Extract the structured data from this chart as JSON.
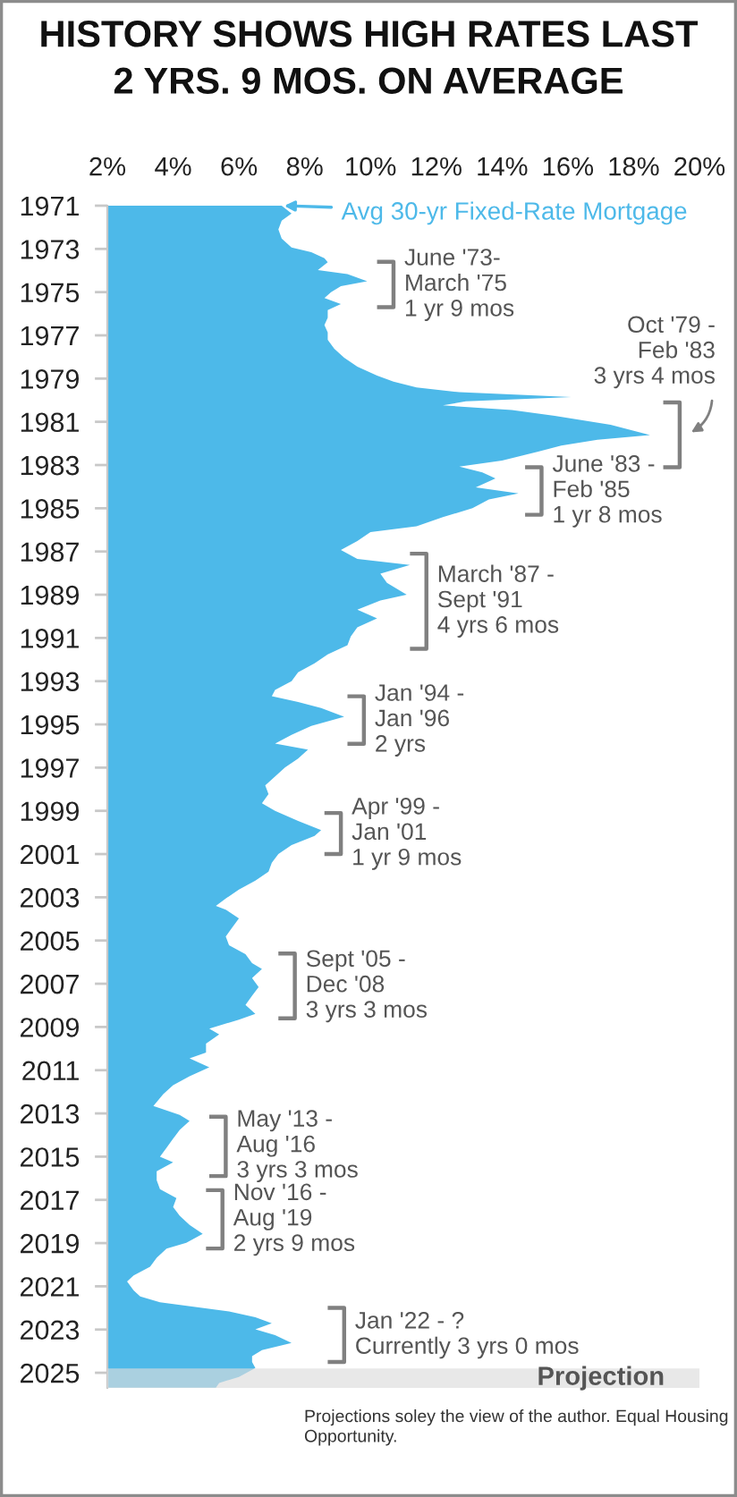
{
  "chart_data": {
    "type": "area",
    "orientation": "horizontal",
    "title": "HISTORY SHOWS HIGH RATES LAST\n2 YRS. 9 MOS. ON AVERAGE",
    "x": [
      1971.0,
      1971.36,
      1971.69,
      1972.1,
      1972.52,
      1972.93,
      1973.15,
      1973.43,
      1973.62,
      1973.98,
      1974.17,
      1974.5,
      1974.72,
      1975.0,
      1975.27,
      1975.55,
      1975.83,
      1976.18,
      1976.52,
      1976.87,
      1977.21,
      1977.62,
      1978.03,
      1978.45,
      1978.86,
      1979.14,
      1979.41,
      1979.63,
      1979.85,
      1980.05,
      1980.24,
      1980.45,
      1980.72,
      1981.14,
      1981.61,
      1981.83,
      1982.1,
      1982.38,
      1982.79,
      1983.07,
      1983.34,
      1983.62,
      1984.03,
      1984.31,
      1984.59,
      1985.0,
      1985.41,
      1985.83,
      1986.1,
      1986.52,
      1986.93,
      1987.34,
      1987.62,
      1988.03,
      1988.45,
      1989.0,
      1989.27,
      1989.69,
      1990.1,
      1990.51,
      1990.93,
      1991.34,
      1991.76,
      1992.17,
      1992.59,
      1993.0,
      1993.41,
      1993.69,
      1993.96,
      1994.24,
      1994.65,
      1995.07,
      1995.48,
      1995.89,
      1996.17,
      1996.58,
      1997.0,
      1997.41,
      1997.82,
      1998.23,
      1998.65,
      1999.0,
      1999.47,
      1999.89,
      2000.16,
      2000.58,
      2001.0,
      2001.4,
      2001.82,
      2002.23,
      2002.64,
      2003.06,
      2003.4,
      2003.57,
      2003.98,
      2004.39,
      2004.81,
      2005.22,
      2005.63,
      2006.05,
      2006.32,
      2006.74,
      2007.15,
      2007.56,
      2007.98,
      2008.39,
      2008.66,
      2009.08,
      2009.35,
      2009.77,
      2010.18,
      2010.45,
      2010.87,
      2011.28,
      2011.69,
      2012.11,
      2012.66,
      2013.07,
      2013.35,
      2013.76,
      2014.17,
      2014.59,
      2015.0,
      2015.26,
      2015.68,
      2016.09,
      2016.5,
      2016.92,
      2017.33,
      2017.74,
      2018.16,
      2018.57,
      2018.99,
      2019.26,
      2019.68,
      2020.09,
      2020.5,
      2020.78,
      2021.19,
      2021.47,
      2021.74,
      2022.16,
      2022.43,
      2022.71,
      2022.99,
      2023.26,
      2023.62,
      2023.95,
      2024.23,
      2024.5,
      2024.78,
      2025.19,
      2025.47,
      2025.69
    ],
    "series": [
      {
        "name": "Avg 30-yr Fixed-Rate Mortgage",
        "color": "#4db9e9",
        "values": [
          7.3,
          7.6,
          7.3,
          7.2,
          7.3,
          7.6,
          8.2,
          8.6,
          8.7,
          8.4,
          9.3,
          9.9,
          9.1,
          8.8,
          8.6,
          9.1,
          8.7,
          8.7,
          8.6,
          8.7,
          8.7,
          8.9,
          9.2,
          9.6,
          10.2,
          10.7,
          11.4,
          12.7,
          16.1,
          12.9,
          12.2,
          14.3,
          15.6,
          17.3,
          18.5,
          16.9,
          15.8,
          15.1,
          14.0,
          12.7,
          13.4,
          13.8,
          13.2,
          14.5,
          13.6,
          13.1,
          12.2,
          11.4,
          10.0,
          9.6,
          9.1,
          9.6,
          11.2,
          10.3,
          10.5,
          11.1,
          10.3,
          9.6,
          10.2,
          9.6,
          9.4,
          9.3,
          8.7,
          8.3,
          7.8,
          7.6,
          7.1,
          7.0,
          7.8,
          8.5,
          9.2,
          8.2,
          7.6,
          7.1,
          8.1,
          7.8,
          7.4,
          7.1,
          6.8,
          6.9,
          6.7,
          7.1,
          7.8,
          8.5,
          8.3,
          7.6,
          7.2,
          7.0,
          6.9,
          6.5,
          6.0,
          5.6,
          5.3,
          5.6,
          6.0,
          5.8,
          5.6,
          5.7,
          6.2,
          6.4,
          6.7,
          6.4,
          6.6,
          6.4,
          6.2,
          6.5,
          6.0,
          5.1,
          5.4,
          5.0,
          5.0,
          4.5,
          5.1,
          4.5,
          4.0,
          3.7,
          3.4,
          4.2,
          4.5,
          4.2,
          4.0,
          3.8,
          3.6,
          4.0,
          3.5,
          3.5,
          3.6,
          4.1,
          4.0,
          4.2,
          4.5,
          4.9,
          4.4,
          3.8,
          3.5,
          3.3,
          2.8,
          2.6,
          2.8,
          3.0,
          3.6,
          5.7,
          6.5,
          7.0,
          6.5,
          7.1,
          7.6,
          6.7,
          6.4,
          6.4,
          6.5,
          6.0,
          5.4,
          5.3
        ]
      },
      {
        "type": "line",
        "color": "#808080",
        "x": [
          1973.6,
          1973.6,
          1975.7,
          1975.7
        ],
        "values": [
          10.2,
          10.7,
          10.7,
          10.2
        ]
      },
      {
        "type": "line",
        "color": "#808080",
        "x": [
          1980.1,
          1980.1,
          1983.1,
          1983.1
        ],
        "values": [
          18.9,
          19.4,
          19.4,
          18.9
        ]
      },
      {
        "type": "line",
        "color": "#808080",
        "x": [
          1983.1,
          1983.1,
          1985.3,
          1985.3
        ],
        "values": [
          14.7,
          15.2,
          15.2,
          14.7
        ]
      },
      {
        "type": "line",
        "color": "#808080",
        "x": [
          1987.1,
          1987.1,
          1991.5,
          1991.5
        ],
        "values": [
          11.2,
          11.7,
          11.7,
          11.2
        ]
      },
      {
        "type": "line",
        "color": "#808080",
        "x": [
          1993.7,
          1993.7,
          1995.9,
          1995.9
        ],
        "values": [
          9.3,
          9.8,
          9.8,
          9.3
        ]
      },
      {
        "type": "line",
        "color": "#808080",
        "x": [
          1999.1,
          1999.1,
          2001.0,
          2001.0
        ],
        "values": [
          8.6,
          9.1,
          9.1,
          8.6
        ]
      },
      {
        "type": "line",
        "color": "#808080",
        "x": [
          2005.6,
          2005.6,
          2008.6,
          2008.6
        ],
        "values": [
          7.2,
          7.7,
          7.7,
          7.2
        ]
      },
      {
        "type": "line",
        "color": "#808080",
        "x": [
          2013.15,
          2013.15,
          2015.9,
          2015.9
        ],
        "values": [
          5.1,
          5.6,
          5.6,
          5.1
        ]
      },
      {
        "type": "line",
        "color": "#808080",
        "x": [
          2016.55,
          2016.55,
          2019.25,
          2019.25
        ],
        "values": [
          5.0,
          5.5,
          5.5,
          5.0
        ]
      },
      {
        "type": "line",
        "color": "#808080",
        "x": [
          2022.0,
          2022.0,
          2024.5,
          2024.5
        ],
        "values": [
          8.7,
          9.2,
          9.2,
          8.7
        ]
      }
    ],
    "xlim": [
      2,
      20
    ],
    "xticks": [
      {
        "value": 2,
        "label": "2%"
      },
      {
        "value": 4,
        "label": "4%"
      },
      {
        "value": 6,
        "label": "6%"
      },
      {
        "value": 8,
        "label": "8%"
      },
      {
        "value": 10,
        "label": "10%"
      },
      {
        "value": 12,
        "label": "12%"
      },
      {
        "value": 14,
        "label": "14%"
      },
      {
        "value": 16,
        "label": "16%"
      },
      {
        "value": 18,
        "label": "18%"
      },
      {
        "value": 20,
        "label": "20%"
      }
    ],
    "ylim": [
      2025.7,
      1971
    ],
    "yticks": [
      1971,
      1973,
      1975,
      1977,
      1979,
      1981,
      1983,
      1985,
      1987,
      1989,
      1991,
      1993,
      1995,
      1997,
      1999,
      2001,
      2003,
      2005,
      2007,
      2009,
      2011,
      2013,
      2015,
      2017,
      2019,
      2021,
      2023,
      2025
    ],
    "bands": [
      {
        "axis": "y",
        "from": 2024.8,
        "to": 2025.7,
        "label": "Projection",
        "color": "#dcdcdc"
      }
    ],
    "annotations": [
      {
        "text": "June '73-\nMarch '75\n1 yr 9 mos",
        "x": 10.7,
        "y": 1974.65
      },
      {
        "text": "Oct '79 -\nFeb '83\n3 yrs 4 mos",
        "x": 19.4,
        "y": 1981.6
      },
      {
        "text": "June '83 -\nFeb '85\n1 yr 8 mos",
        "x": 15.2,
        "y": 1984.2
      },
      {
        "text": "March '87 -\nSept '91\n4 yrs 6 mos",
        "x": 11.7,
        "y": 1989.3
      },
      {
        "text": "Jan '94 -\nJan '96\n2 yrs",
        "x": 9.8,
        "y": 1994.8
      },
      {
        "text": "Apr '99 -\nJan '01\n1 yr 9 mos",
        "x": 9.1,
        "y": 2000.05
      },
      {
        "text": "Sept '05 -\nDec '08\n3 yrs 3 mos",
        "x": 7.7,
        "y": 2007.1
      },
      {
        "text": "May '13 -\nAug '16\n3 yrs 3 mos",
        "x": 5.6,
        "y": 2014.5
      },
      {
        "text": "Nov '16 -\nAug '19\n2 yrs 9 mos",
        "x": 5.5,
        "y": 2017.9
      },
      {
        "text": "Jan '22 - ?\nCurrently 3 yrs 0 mos",
        "x": 9.2,
        "y": 2023.25
      },
      "Projections soley the view of the author. Equal Housing Opportunity."
    ]
  }
}
